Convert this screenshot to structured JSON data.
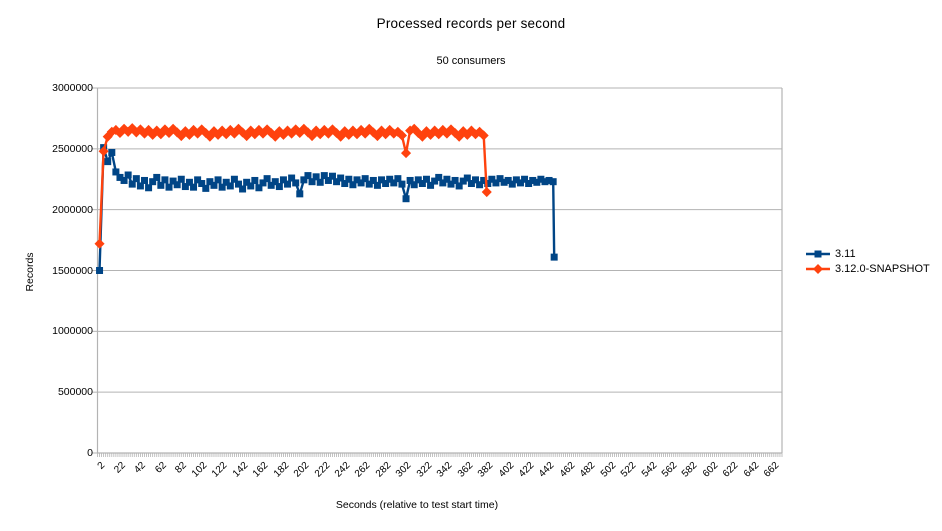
{
  "chart_data": {
    "type": "line",
    "title": "Processed records per second",
    "subtitle": "50 consumers",
    "xlabel": "Seconds  (relative to test start time)",
    "ylabel": "Records",
    "xlim": [
      0,
      670
    ],
    "ylim": [
      0,
      3000000
    ],
    "grid": "horizontal",
    "grid_color": "#b3b3b3",
    "legend_position": "right",
    "x_ticks": [
      2,
      22,
      42,
      62,
      82,
      102,
      122,
      142,
      162,
      182,
      202,
      222,
      242,
      262,
      282,
      302,
      322,
      342,
      362,
      382,
      402,
      422,
      442,
      462,
      482,
      502,
      522,
      542,
      562,
      582,
      602,
      622,
      642,
      662
    ],
    "y_ticks": [
      0,
      500000,
      1000000,
      1500000,
      2000000,
      2500000,
      3000000
    ],
    "y_tick_labels": [
      "0",
      "500000",
      "1000000",
      "1500000",
      "2000000",
      "2500000",
      "3000000"
    ],
    "series": [
      {
        "name": "3.11",
        "color": "#004586",
        "marker": "square",
        "x_start": 2,
        "x_step": 4,
        "values": [
          1500000,
          2510000,
          2395000,
          2470000,
          2310000,
          2265000,
          2240000,
          2285000,
          2210000,
          2255000,
          2195000,
          2240000,
          2180000,
          2230000,
          2265000,
          2200000,
          2245000,
          2185000,
          2235000,
          2205000,
          2250000,
          2190000,
          2225000,
          2185000,
          2245000,
          2215000,
          2175000,
          2230000,
          2200000,
          2245000,
          2185000,
          2225000,
          2195000,
          2250000,
          2210000,
          2170000,
          2225000,
          2195000,
          2240000,
          2180000,
          2220000,
          2255000,
          2200000,
          2230000,
          2190000,
          2245000,
          2210000,
          2260000,
          2220000,
          2130000,
          2245000,
          2280000,
          2230000,
          2270000,
          2225000,
          2280000,
          2240000,
          2275000,
          2230000,
          2260000,
          2215000,
          2250000,
          2205000,
          2245000,
          2220000,
          2255000,
          2210000,
          2240000,
          2200000,
          2245000,
          2215000,
          2250000,
          2220000,
          2255000,
          2210000,
          2090000,
          2240000,
          2205000,
          2245000,
          2215000,
          2250000,
          2200000,
          2235000,
          2265000,
          2220000,
          2250000,
          2210000,
          2240000,
          2195000,
          2235000,
          2260000,
          2215000,
          2245000,
          2205000,
          2240000,
          2215000,
          2250000,
          2220000,
          2255000,
          2225000,
          2240000,
          2210000,
          2245000,
          2220000,
          2250000,
          2215000,
          2240000,
          2225000,
          2250000,
          2230000,
          2240000,
          2230000
        ],
        "final_point": [
          447,
          1610000
        ]
      },
      {
        "name": "3.12.0-SNAPSHOT",
        "color": "#ff420e",
        "marker": "diamond",
        "x_start": 2,
        "x_step": 4,
        "values": [
          1720000,
          2480000,
          2600000,
          2640000,
          2655000,
          2630000,
          2665000,
          2640000,
          2670000,
          2635000,
          2660000,
          2625000,
          2655000,
          2615000,
          2650000,
          2620000,
          2660000,
          2630000,
          2665000,
          2635000,
          2605000,
          2645000,
          2615000,
          2655000,
          2625000,
          2660000,
          2630000,
          2600000,
          2645000,
          2615000,
          2650000,
          2620000,
          2655000,
          2625000,
          2665000,
          2635000,
          2605000,
          2650000,
          2620000,
          2655000,
          2625000,
          2660000,
          2630000,
          2600000,
          2645000,
          2615000,
          2650000,
          2625000,
          2660000,
          2630000,
          2665000,
          2635000,
          2605000,
          2650000,
          2620000,
          2655000,
          2625000,
          2660000,
          2630000,
          2600000,
          2645000,
          2615000,
          2650000,
          2620000,
          2655000,
          2625000,
          2665000,
          2635000,
          2605000,
          2650000,
          2620000,
          2655000,
          2625000,
          2640000,
          2610000,
          2465000,
          2650000,
          2665000,
          2630000,
          2600000,
          2645000,
          2615000,
          2650000,
          2620000,
          2655000,
          2625000,
          2660000,
          2630000,
          2600000,
          2645000,
          2615000,
          2650000,
          2620000,
          2640000,
          2610000
        ],
        "final_point": [
          381,
          2145000
        ]
      }
    ]
  }
}
